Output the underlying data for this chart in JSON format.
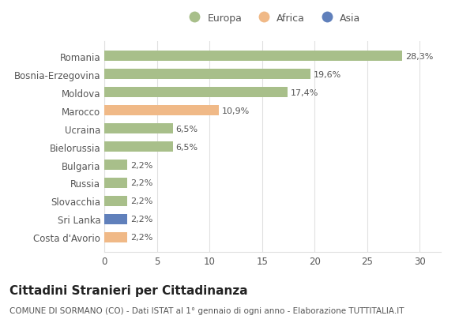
{
  "categories": [
    "Romania",
    "Bosnia-Erzegovina",
    "Moldova",
    "Marocco",
    "Ucraina",
    "Bielorussia",
    "Bulgaria",
    "Russia",
    "Slovacchia",
    "Sri Lanka",
    "Costa d'Avorio"
  ],
  "values": [
    28.3,
    19.6,
    17.4,
    10.9,
    6.5,
    6.5,
    2.2,
    2.2,
    2.2,
    2.2,
    2.2
  ],
  "labels": [
    "28,3%",
    "19,6%",
    "17,4%",
    "10,9%",
    "6,5%",
    "6,5%",
    "2,2%",
    "2,2%",
    "2,2%",
    "2,2%",
    "2,2%"
  ],
  "colors": [
    "#a8bf8a",
    "#a8bf8a",
    "#a8bf8a",
    "#f0b987",
    "#a8bf8a",
    "#a8bf8a",
    "#a8bf8a",
    "#a8bf8a",
    "#a8bf8a",
    "#6080bb",
    "#f0b987"
  ],
  "legend_labels": [
    "Europa",
    "Africa",
    "Asia"
  ],
  "legend_colors": [
    "#a8bf8a",
    "#f0b987",
    "#6080bb"
  ],
  "xlim": [
    0,
    32
  ],
  "xticks": [
    0,
    5,
    10,
    15,
    20,
    25,
    30
  ],
  "title": "Cittadini Stranieri per Cittadinanza",
  "subtitle": "COMUNE DI SORMANO (CO) - Dati ISTAT al 1° gennaio di ogni anno - Elaborazione TUTTITALIA.IT",
  "background_color": "#ffffff",
  "bar_height": 0.55,
  "title_fontsize": 11,
  "subtitle_fontsize": 7.5,
  "label_fontsize": 8,
  "tick_fontsize": 8.5,
  "legend_fontsize": 9,
  "grid_color": "#e0e0e0",
  "text_color": "#555555",
  "title_color": "#222222"
}
